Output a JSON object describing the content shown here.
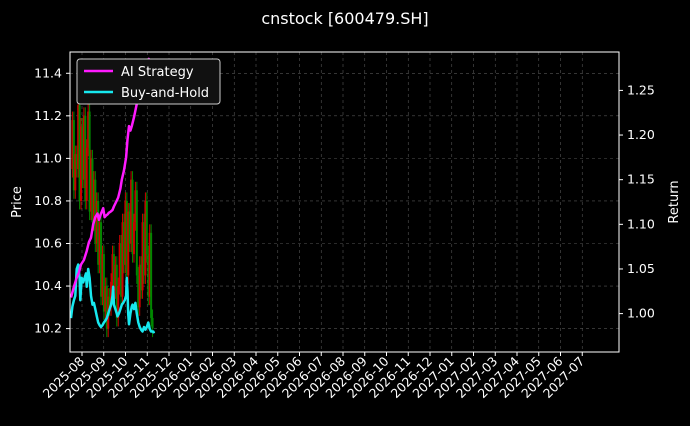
{
  "chart_data": {
    "type": "line",
    "title": "cnstock [600479.SH]",
    "ylabel_left": "Price",
    "ylabel_right": "Return",
    "y_left_range": [
      10.09,
      11.5
    ],
    "y_left_ticks": [
      "10.2",
      "10.4",
      "10.6",
      "10.8",
      "11.0",
      "11.2",
      "11.4"
    ],
    "y_right_range": [
      0.957,
      1.293
    ],
    "y_right_ticks": [
      "1.00",
      "1.05",
      "1.10",
      "1.15",
      "1.20",
      "1.25"
    ],
    "x_ticks": [
      "2025-08",
      "2025-09",
      "2025-10",
      "2025-11",
      "2025-12",
      "2026-01",
      "2026-02",
      "2026-03",
      "2026-04",
      "2026-05",
      "2026-06",
      "2026-07",
      "2026-08",
      "2026-09",
      "2026-10",
      "2026-11",
      "2026-12",
      "2027-01",
      "2027-02",
      "2027-03",
      "2027-04",
      "2027-05",
      "2027-06",
      "2027-07"
    ],
    "grid": true,
    "legend": "top-left",
    "colors": {
      "background": "#000000",
      "ai": "#ff1aff",
      "bh": "#17e8ef",
      "up": "#cc0000",
      "down": "#008800",
      "grid": "#555555"
    },
    "series": [
      {
        "name": "AI Strategy",
        "axis": "right",
        "points": [
          [
            0,
            1.018
          ],
          [
            4,
            1.03
          ],
          [
            8,
            1.04
          ],
          [
            11,
            1.046
          ],
          [
            14,
            1.055
          ],
          [
            18,
            1.06
          ],
          [
            22,
            1.07
          ],
          [
            25,
            1.08
          ],
          [
            28,
            1.085
          ],
          [
            31,
            1.1
          ],
          [
            34,
            1.108
          ],
          [
            37,
            1.112
          ],
          [
            39,
            1.105
          ],
          [
            42,
            1.112
          ],
          [
            45,
            1.118
          ],
          [
            47,
            1.108
          ],
          [
            49,
            1.11
          ],
          [
            51,
            1.111
          ],
          [
            53,
            1.113
          ],
          [
            55,
            1.114
          ],
          [
            58,
            1.116
          ],
          [
            60,
            1.12
          ],
          [
            63,
            1.125
          ],
          [
            66,
            1.13
          ],
          [
            69,
            1.14
          ],
          [
            71,
            1.15
          ],
          [
            74,
            1.16
          ],
          [
            77,
            1.175
          ],
          [
            79,
            1.195
          ],
          [
            81,
            1.21
          ],
          [
            83,
            1.205
          ],
          [
            85,
            1.21
          ],
          [
            88,
            1.22
          ],
          [
            92,
            1.235
          ],
          [
            95,
            1.25
          ],
          [
            98,
            1.262
          ],
          [
            101,
            1.27
          ],
          [
            104,
            1.278
          ],
          [
            107,
            1.283
          ],
          [
            110,
            1.286
          ]
        ]
      },
      {
        "name": "Buy-and-Hold",
        "axis": "right",
        "points": [
          [
            0,
            0.995
          ],
          [
            2,
            1.008
          ],
          [
            4,
            1.015
          ],
          [
            6,
            1.02
          ],
          [
            8,
            1.05
          ],
          [
            10,
            1.055
          ],
          [
            12,
            1.04
          ],
          [
            13,
            1.015
          ],
          [
            15,
            1.04
          ],
          [
            17,
            1.035
          ],
          [
            19,
            1.04
          ],
          [
            21,
            1.045
          ],
          [
            22,
            1.03
          ],
          [
            24,
            1.05
          ],
          [
            26,
            1.04
          ],
          [
            28,
            1.02
          ],
          [
            30,
            1.01
          ],
          [
            32,
            1.012
          ],
          [
            34,
            1.005
          ],
          [
            36,
            0.997
          ],
          [
            38,
            0.99
          ],
          [
            40,
            0.987
          ],
          [
            42,
            0.985
          ],
          [
            44,
            0.987
          ],
          [
            46,
            0.99
          ],
          [
            48,
            0.992
          ],
          [
            50,
            0.995
          ],
          [
            52,
            1.0
          ],
          [
            54,
            1.005
          ],
          [
            56,
            1.01
          ],
          [
            58,
            1.02
          ],
          [
            59,
            1.03
          ],
          [
            60,
            1.01
          ],
          [
            62,
            1.005
          ],
          [
            64,
            1.0
          ],
          [
            65,
            0.997
          ],
          [
            67,
            1.0
          ],
          [
            69,
            1.005
          ],
          [
            71,
            1.01
          ],
          [
            73,
            1.012
          ],
          [
            75,
            1.015
          ],
          [
            77,
            1.02
          ],
          [
            78,
            1.04
          ],
          [
            79,
            1.025
          ],
          [
            80,
            1.0
          ],
          [
            81,
            0.988
          ],
          [
            83,
            1.0
          ],
          [
            85,
            1.008
          ],
          [
            86,
            1.01
          ],
          [
            88,
            1.005
          ],
          [
            90,
            1.012
          ],
          [
            92,
            1.0
          ],
          [
            94,
            0.99
          ],
          [
            96,
            0.985
          ],
          [
            98,
            0.982
          ],
          [
            100,
            0.98
          ],
          [
            102,
            0.985
          ],
          [
            104,
            0.982
          ],
          [
            106,
            0.985
          ],
          [
            108,
            0.99
          ],
          [
            110,
            0.983
          ],
          [
            112,
            0.98
          ],
          [
            113,
            0.98
          ],
          [
            115,
            0.98
          ],
          [
            116,
            0.978
          ]
        ]
      },
      {
        "name": "Price",
        "axis": "left",
        "ohlc_close": [
          [
            0,
            10.95
          ],
          [
            2,
            11.18
          ],
          [
            4,
            10.85
          ],
          [
            6,
            11.02
          ],
          [
            8,
            10.95
          ],
          [
            10,
            11.25
          ],
          [
            12,
            10.8
          ],
          [
            14,
            11.15
          ],
          [
            16,
            10.9
          ],
          [
            18,
            11.2
          ],
          [
            20,
            10.8
          ],
          [
            22,
            11.05
          ],
          [
            24,
            11.22
          ],
          [
            26,
            10.75
          ],
          [
            28,
            11.0
          ],
          [
            30,
            10.7
          ],
          [
            32,
            10.9
          ],
          [
            34,
            10.6
          ],
          [
            36,
            10.8
          ],
          [
            38,
            10.5
          ],
          [
            40,
            10.7
          ],
          [
            42,
            10.35
          ],
          [
            44,
            10.55
          ],
          [
            46,
            10.28
          ],
          [
            48,
            10.4
          ],
          [
            50,
            10.2
          ],
          [
            52,
            10.35
          ],
          [
            54,
            10.3
          ],
          [
            56,
            10.42
          ],
          [
            58,
            10.55
          ],
          [
            60,
            10.38
          ],
          [
            62,
            10.5
          ],
          [
            64,
            10.25
          ],
          [
            66,
            10.4
          ],
          [
            68,
            10.6
          ],
          [
            70,
            10.35
          ],
          [
            72,
            10.7
          ],
          [
            74,
            10.5
          ],
          [
            76,
            10.8
          ],
          [
            78,
            10.45
          ],
          [
            80,
            10.75
          ],
          [
            82,
            10.6
          ],
          [
            84,
            10.9
          ],
          [
            86,
            10.55
          ],
          [
            88,
            10.7
          ],
          [
            90,
            10.85
          ],
          [
            92,
            10.45
          ],
          [
            94,
            10.3
          ],
          [
            96,
            10.5
          ],
          [
            98,
            10.38
          ],
          [
            100,
            10.7
          ],
          [
            102,
            10.45
          ],
          [
            104,
            10.8
          ],
          [
            106,
            10.55
          ],
          [
            108,
            10.35
          ],
          [
            110,
            10.65
          ],
          [
            112,
            10.25
          ],
          [
            114,
            10.2
          ]
        ]
      }
    ]
  }
}
